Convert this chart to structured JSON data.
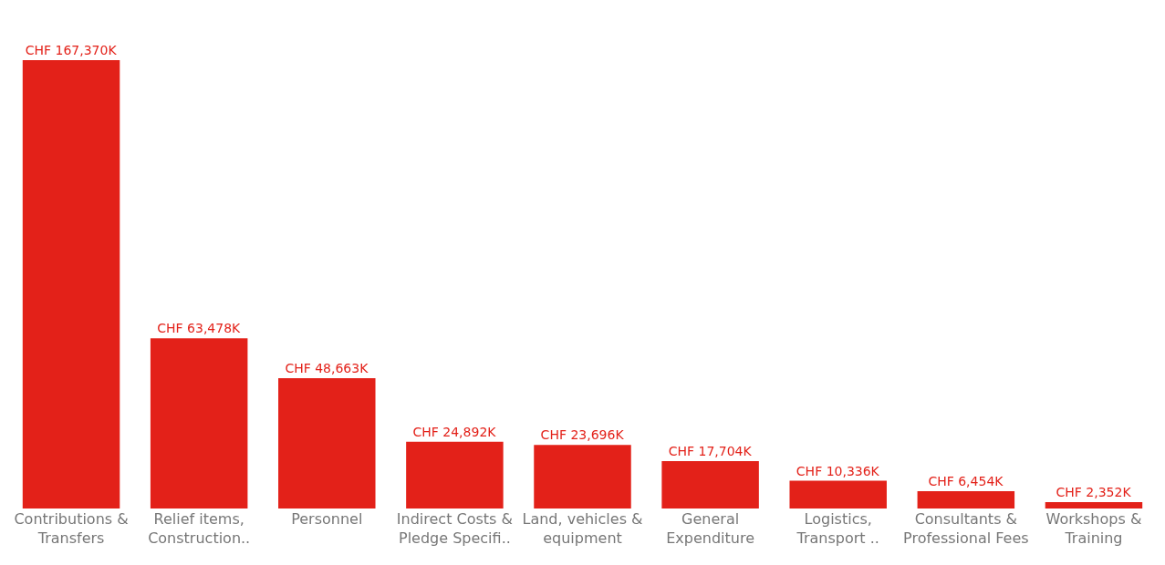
{
  "chart_data": {
    "type": "bar",
    "categories": [
      "Contributions & Transfers",
      "Relief items, Construction..",
      "Personnel",
      "Indirect Costs & Pledge Specifi..",
      "Land, vehicles & equipment",
      "General Expenditure",
      "Logistics, Transport ..",
      "Consultants & Professional Fees",
      "Workshops & Training"
    ],
    "values": [
      167370000,
      63478000,
      48663000,
      24892000,
      23696000,
      17704000,
      10336000,
      6454000,
      2352000
    ],
    "value_labels": [
      "CHF 167,370K",
      "CHF 63,478K",
      "CHF 48,663K",
      "CHF 24,892K",
      "CHF 23,696K",
      "CHF 17,704K",
      "CHF 10,336K",
      "CHF 6,454K",
      "CHF 2,352K"
    ],
    "color": "#e32119",
    "grid": false
  }
}
